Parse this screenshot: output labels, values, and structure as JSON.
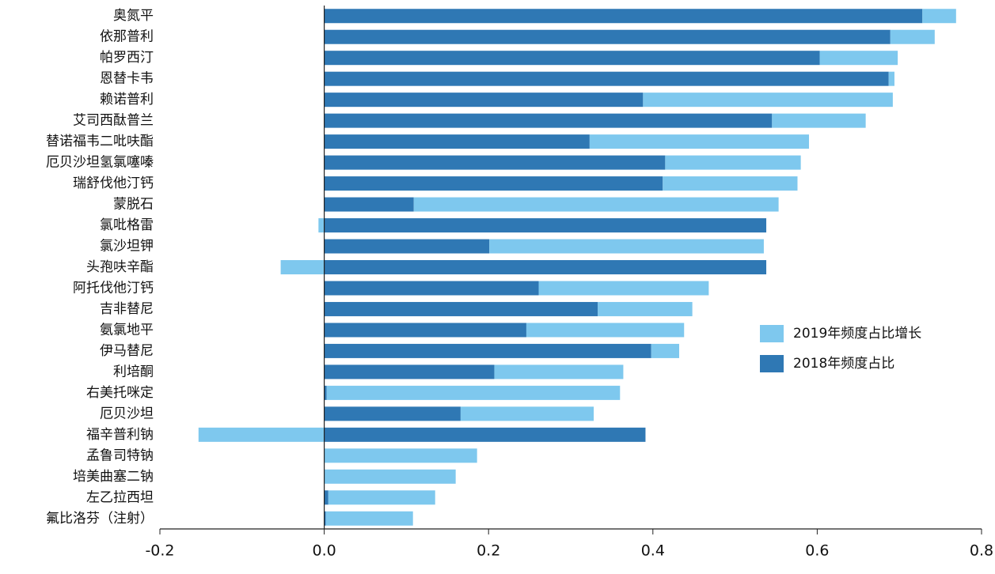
{
  "chart_data": {
    "type": "stacked-barh",
    "categories": [
      "奥氮平",
      "依那普利",
      "帕罗西汀",
      "恩替卡韦",
      "赖诺普利",
      "艾司西酞普兰",
      "替诺福韦二吡呋酯",
      "厄贝沙坦氢氯噻嗪",
      "瑞舒伐他汀钙",
      "蒙脱石",
      "氯吡格雷",
      "氯沙坦钾",
      "头孢呋辛酯",
      "阿托伐他汀钙",
      "吉非替尼",
      "氨氯地平",
      "伊马替尼",
      "利培酮",
      "右美托咪定",
      "厄贝沙坦",
      "福辛普利钠",
      "孟鲁司特钠",
      "培美曲塞二钠",
      "左乙拉西坦",
      "氟比洛芬（注射）"
    ],
    "series": [
      {
        "name": "2019年频度占比增长",
        "color": "#7ec8ee",
        "values": [
          0.041,
          0.054,
          0.095,
          0.007,
          0.304,
          0.114,
          0.267,
          0.165,
          0.164,
          0.444,
          -0.007,
          0.334,
          -0.053,
          0.207,
          0.115,
          0.192,
          0.034,
          0.157,
          0.357,
          0.162,
          -0.153,
          0.186,
          0.16,
          0.13,
          0.106
        ]
      },
      {
        "name": "2018年频度占比",
        "color": "#2f78b4",
        "values": [
          0.728,
          0.689,
          0.603,
          0.687,
          0.388,
          0.545,
          0.323,
          0.415,
          0.412,
          0.109,
          0.538,
          0.201,
          0.538,
          0.261,
          0.333,
          0.246,
          0.398,
          0.207,
          0.003,
          0.166,
          0.391,
          0,
          0,
          0.005,
          0.002
        ]
      }
    ],
    "xlim": [
      -0.2,
      0.8
    ],
    "xticks": [
      {
        "value": -0.2,
        "label": "-0.2"
      },
      {
        "value": 0,
        "label": "0.0"
      },
      {
        "value": 0.2,
        "label": "0.2"
      },
      {
        "value": 0.4,
        "label": "0.4"
      },
      {
        "value": 0.6,
        "label": "0.6"
      },
      {
        "value": 0.8,
        "label": "0.8"
      }
    ]
  }
}
